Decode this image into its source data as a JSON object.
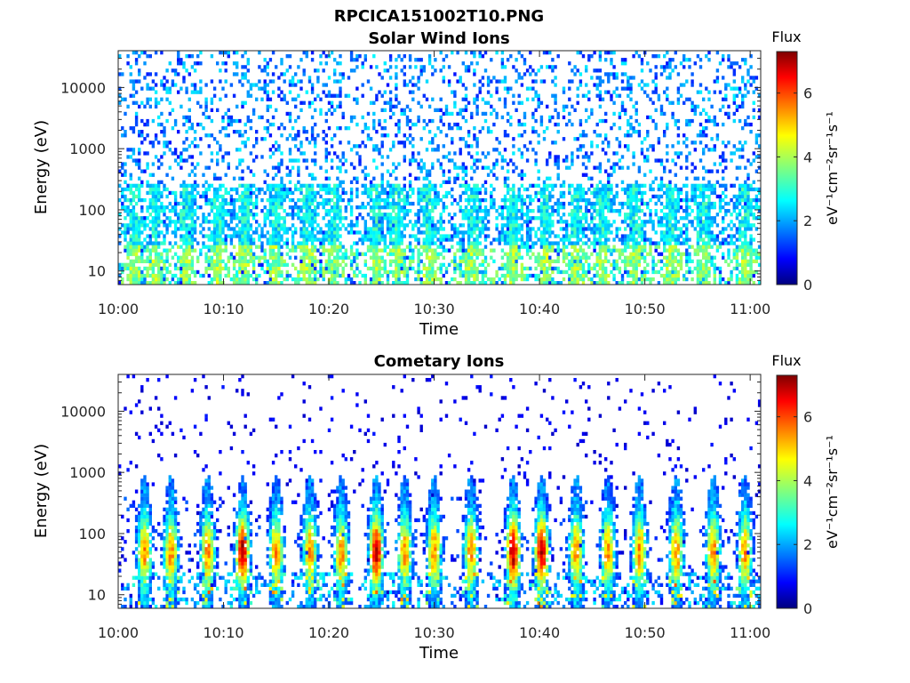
{
  "figure": {
    "title": "RPCICA151002T10.PNG"
  },
  "chart_data": [
    {
      "type": "heatmap",
      "title": "Solar Wind Ions",
      "xlabel": "Time",
      "ylabel": "Energy (eV)",
      "x_ticks": [
        "10:00",
        "10:10",
        "10:20",
        "10:30",
        "10:40",
        "10:50",
        "11:00"
      ],
      "x_range_minutes": [
        0,
        61
      ],
      "y_scale": "log",
      "y_ticks": [
        "10",
        "100",
        "1000",
        "10000"
      ],
      "y_range": [
        6,
        40000
      ],
      "colorbar": {
        "label": "Flux",
        "units": "eV⁻¹cm⁻²sr⁻¹s⁻¹",
        "range": [
          0,
          7.3
        ],
        "ticks": [
          "0",
          "2",
          "4",
          "6"
        ],
        "colormap": "jet"
      },
      "bursts_minutes": [
        1.5,
        3.5,
        6.5,
        9.5,
        12,
        15,
        18,
        20.5,
        24.5,
        26.5,
        29.5,
        33.5,
        37.5,
        40.5,
        43.5,
        46,
        49,
        52.5,
        55.5,
        59.5
      ],
      "description": "Sparse speckle of low flux (~1–3) across 100–40000 eV; denser cyan/green columns below ~300 eV with enhancements at the listed times."
    },
    {
      "type": "heatmap",
      "title": "Cometary Ions",
      "xlabel": "Time",
      "ylabel": "Energy (eV)",
      "x_ticks": [
        "10:00",
        "10:10",
        "10:20",
        "10:30",
        "10:40",
        "10:50",
        "11:00"
      ],
      "x_range_minutes": [
        0,
        61
      ],
      "y_scale": "log",
      "y_ticks": [
        "10",
        "100",
        "1000",
        "10000"
      ],
      "y_range": [
        6,
        40000
      ],
      "colorbar": {
        "label": "Flux",
        "units": "eV⁻¹cm⁻²sr⁻¹s⁻¹",
        "range": [
          0,
          7.3
        ],
        "ticks": [
          "0",
          "2",
          "4",
          "6"
        ],
        "colormap": "jet"
      },
      "bursts_minutes": [
        2.5,
        5,
        8.5,
        11.8,
        15,
        18.2,
        21.2,
        24.5,
        27.2,
        30,
        33.5,
        37.5,
        40.2,
        43.5,
        46.5,
        49.5,
        53,
        56.5,
        59.5
      ],
      "peak_flux_minutes": [
        11.8,
        24.5,
        37.5,
        40.2
      ],
      "description": "Strong periodic bursts peaking (yellow–red, flux 5–7) at 20–100 eV, extending up to ~1000 eV, with sparse low-flux dots up to ~10000 eV."
    }
  ]
}
